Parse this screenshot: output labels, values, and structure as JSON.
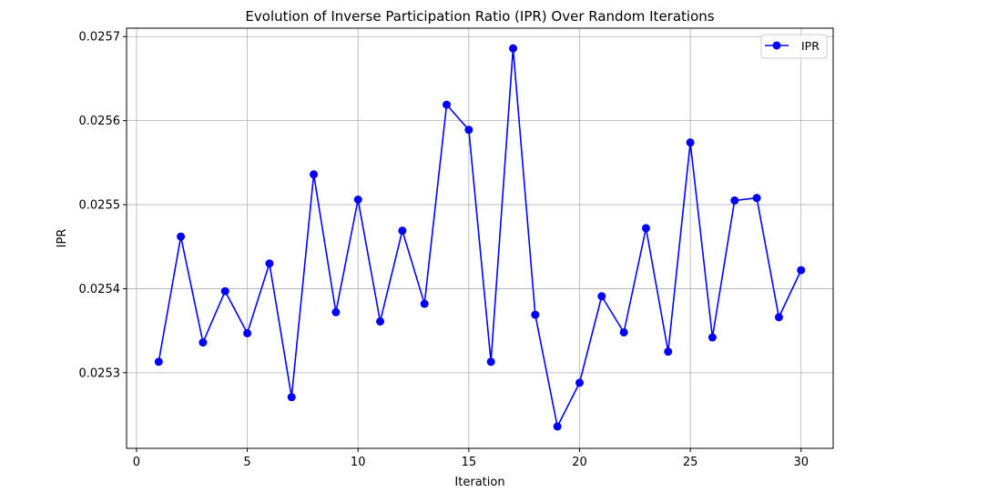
{
  "chart_data": {
    "type": "line",
    "title": "Evolution of Inverse Participation Ratio (IPR) Over Random Iterations",
    "xlabel": "Iteration",
    "ylabel": "IPR",
    "xlim": [
      -0.45,
      31.45
    ],
    "ylim": [
      0.02521,
      0.02571
    ],
    "xticks": [
      0,
      5,
      10,
      15,
      20,
      25,
      30
    ],
    "yticks": [
      0.0253,
      0.0254,
      0.0255,
      0.0256,
      0.0257
    ],
    "grid": true,
    "legend_position": "top-right",
    "series": [
      {
        "name": "IPR",
        "color": "#0000ff",
        "marker": "circle",
        "x": [
          1,
          2,
          3,
          4,
          5,
          6,
          7,
          8,
          9,
          10,
          11,
          12,
          13,
          14,
          15,
          16,
          17,
          18,
          19,
          20,
          21,
          22,
          23,
          24,
          25,
          26,
          27,
          28,
          29,
          30
        ],
        "y": [
          0.025313,
          0.025462,
          0.025336,
          0.025397,
          0.025347,
          0.02543,
          0.025271,
          0.025536,
          0.025372,
          0.025506,
          0.025361,
          0.025469,
          0.025382,
          0.025619,
          0.025589,
          0.025313,
          0.025686,
          0.025369,
          0.025236,
          0.025288,
          0.025391,
          0.025348,
          0.025472,
          0.025325,
          0.025574,
          0.025342,
          0.025505,
          0.025508,
          0.025366,
          0.025422
        ]
      }
    ]
  }
}
